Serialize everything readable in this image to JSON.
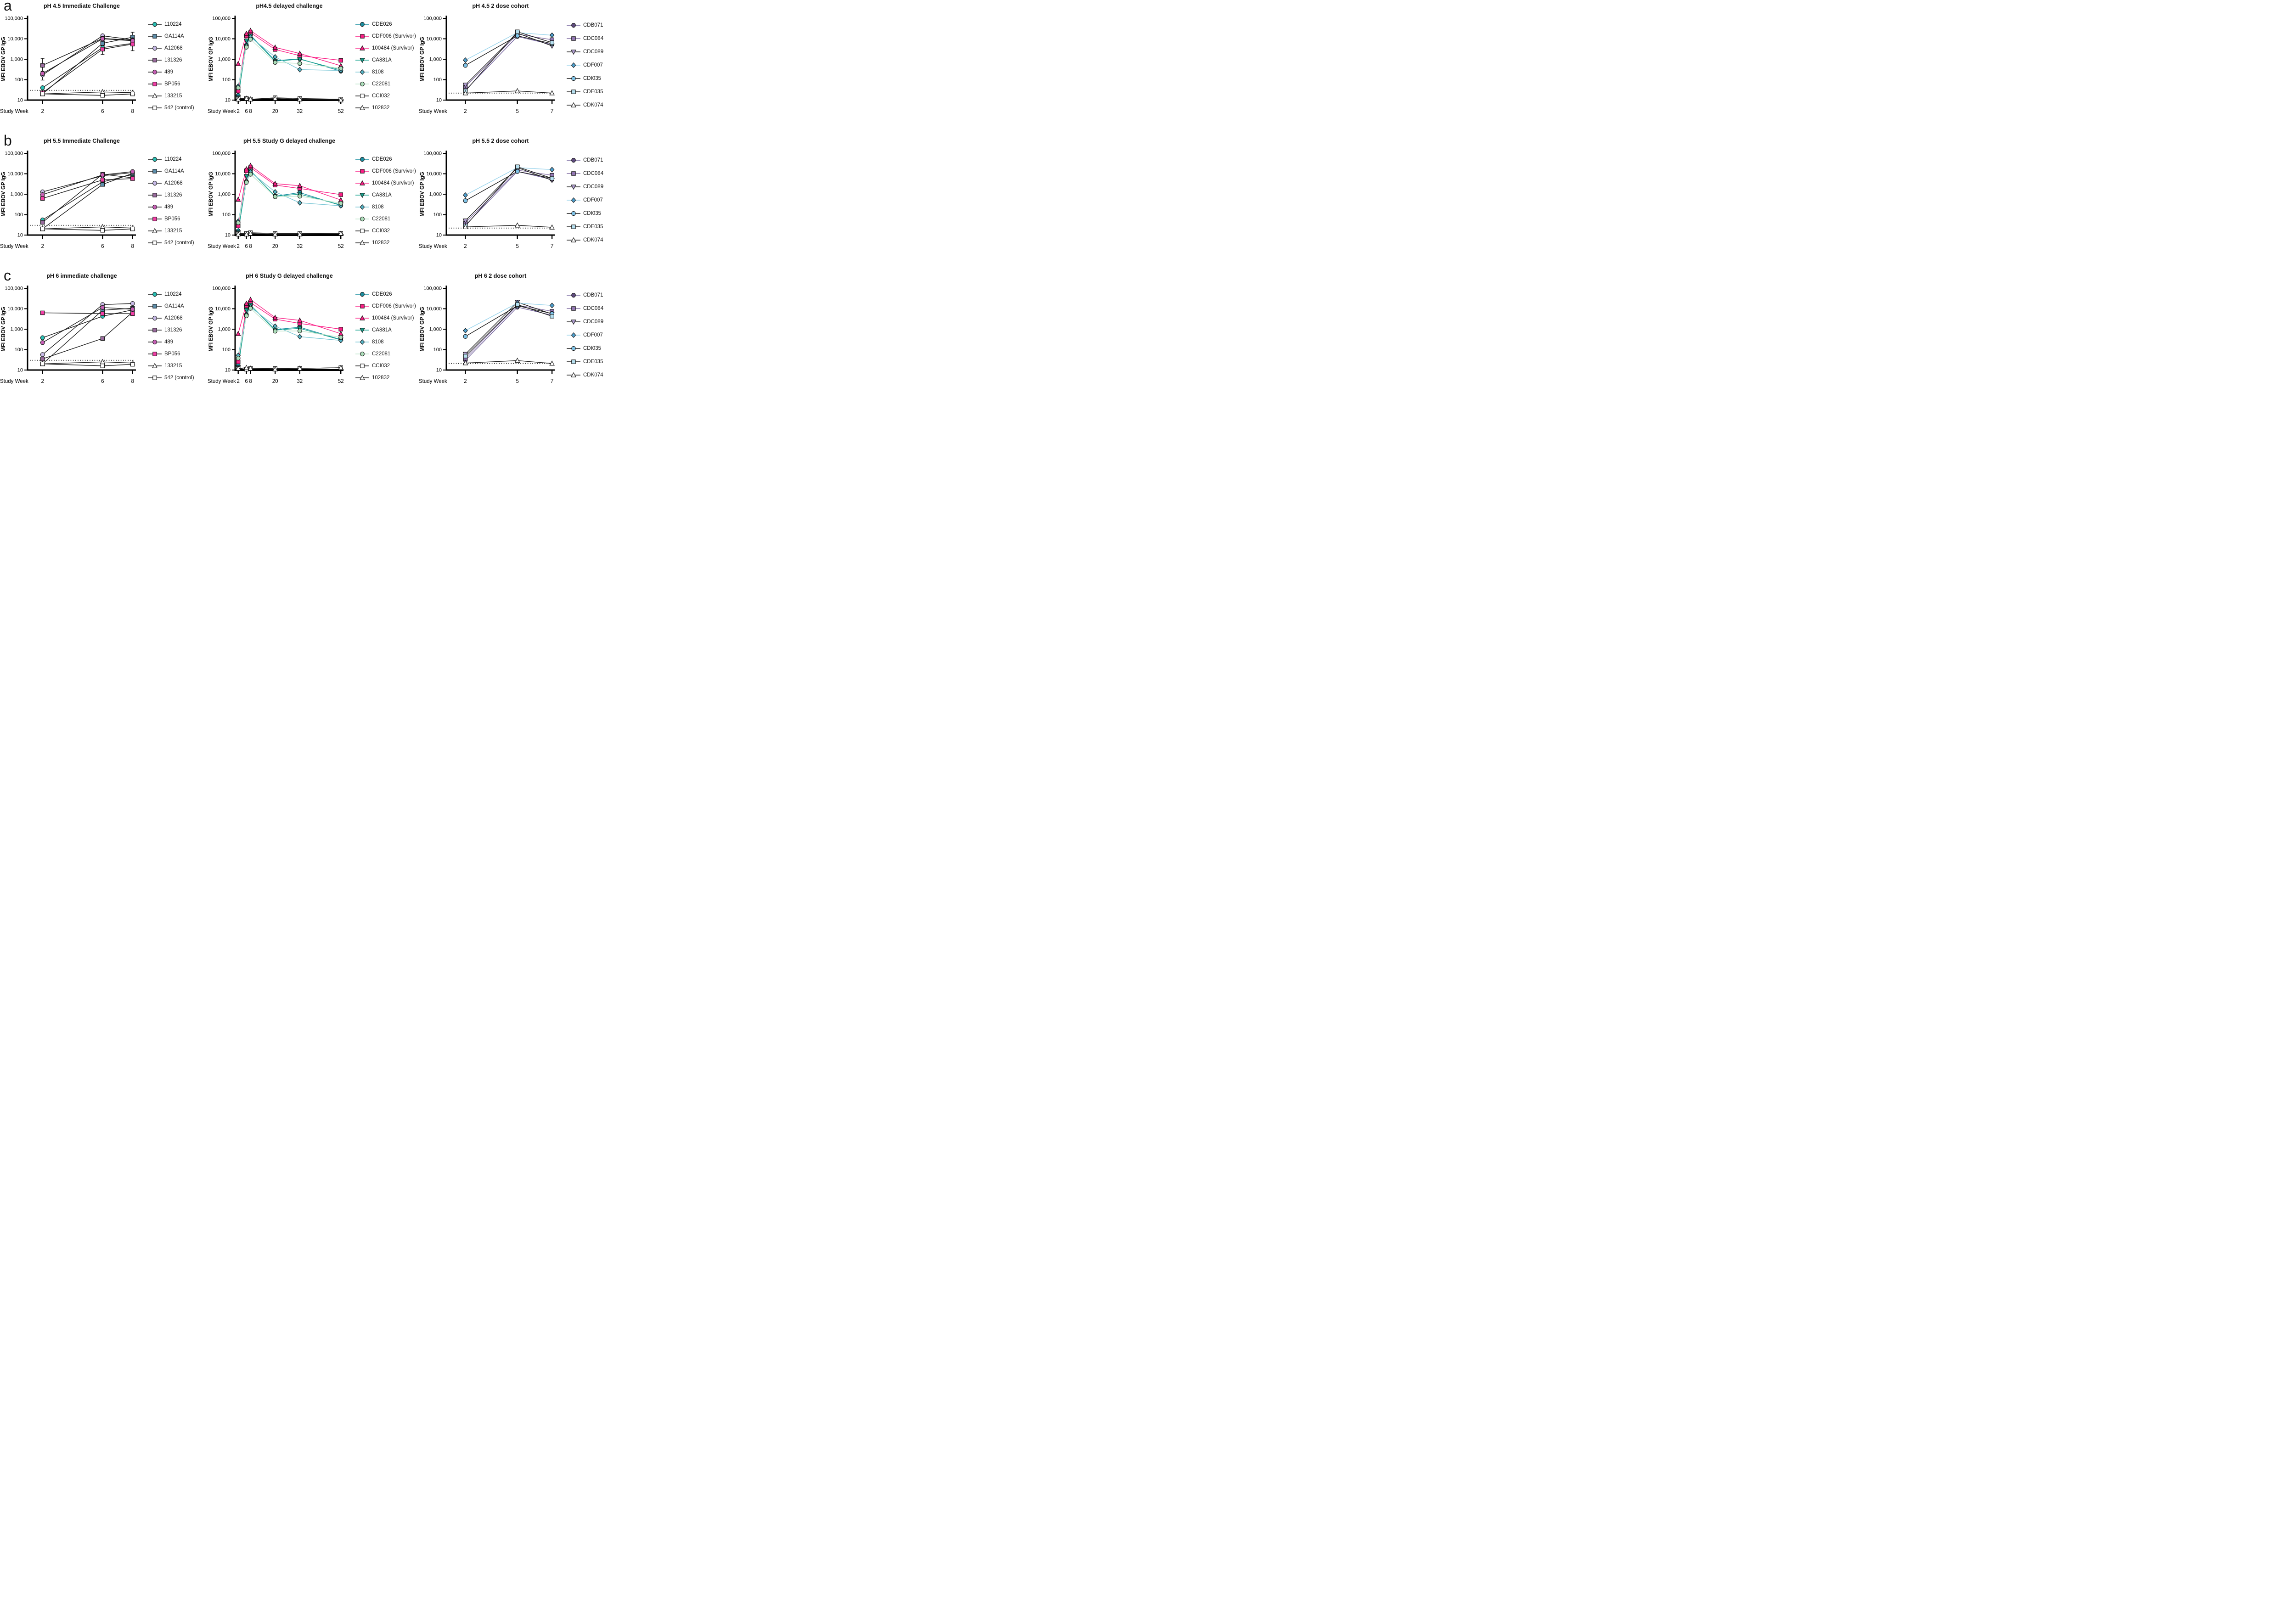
{
  "figure": {
    "panel_letters": [
      "a",
      "b",
      "c"
    ],
    "y_axis_label": "MFI EBOV GP IgG",
    "x_axis_label": "Study Week",
    "y_tick_labels": [
      "100,000",
      "10,000",
      "1,000",
      "100",
      "10"
    ],
    "background_color": "#ffffff",
    "axis_color": "#000000"
  },
  "legends": {
    "immediate": [
      {
        "label": "110224",
        "marker": "circle",
        "fill": "#2abfb3",
        "line": "#1a1a1a"
      },
      {
        "label": "GA114A",
        "marker": "square",
        "fill": "#5e8fac",
        "line": "#1a1a1a"
      },
      {
        "label": "A12068",
        "marker": "circle",
        "fill": "#c9bce9",
        "line": "#1a1a1a"
      },
      {
        "label": "131326",
        "marker": "square",
        "fill": "#9a6c9e",
        "line": "#1a1a1a"
      },
      {
        "label": "489",
        "marker": "circle",
        "fill": "#c760b6",
        "line": "#1a1a1a"
      },
      {
        "label": "BP056",
        "marker": "square",
        "fill": "#f33fa7",
        "line": "#1a1a1a"
      },
      {
        "label": "133215",
        "marker": "triangle-up",
        "fill": "#ffffff",
        "line": "#1a1a1a"
      },
      {
        "label": "542 (control)",
        "marker": "square",
        "fill": "#ffffff",
        "line": "#1a1a1a"
      }
    ],
    "delayed": [
      {
        "label": "CDE026",
        "marker": "circle",
        "fill": "#1e90a2",
        "line": "#1e90a2"
      },
      {
        "label": "CDF006 (Survivor)",
        "marker": "square",
        "fill": "#fb2087",
        "line": "#fb2087"
      },
      {
        "label": "100484 (Survivor)",
        "marker": "triangle-up",
        "fill": "#fb2087",
        "line": "#fb2087"
      },
      {
        "label": "CA881A",
        "marker": "triangle-down",
        "fill": "#17a28d",
        "line": "#17a28d"
      },
      {
        "label": "8108",
        "marker": "diamond",
        "fill": "#56b4c6",
        "line": "#7cc7d6"
      },
      {
        "label": "C22081",
        "marker": "circle",
        "fill": "#abddb9",
        "line": "#c2e6cd"
      },
      {
        "label": "CCI032",
        "marker": "square",
        "fill": "#ffffff",
        "line": "#1a1a1a"
      },
      {
        "label": "102832",
        "marker": "triangle-up",
        "fill": "#ffffff",
        "line": "#1a1a1a"
      }
    ],
    "dose2": [
      {
        "label": "CDB071",
        "marker": "circle",
        "fill": "#5f4b7e",
        "line": "#71619c"
      },
      {
        "label": "CDC084",
        "marker": "square",
        "fill": "#9478b5",
        "line": "#8672a6"
      },
      {
        "label": "CDC089",
        "marker": "triangle-down",
        "fill": "#b5a2d6",
        "line": "#1a1a1a"
      },
      {
        "label": "CDF007",
        "marker": "diamond",
        "fill": "#4fa0cf",
        "line": "#9ad4ec"
      },
      {
        "label": "CDI035",
        "marker": "circle",
        "fill": "#7fc4e9",
        "line": "#1a1a1a"
      },
      {
        "label": "CDE035",
        "marker": "square",
        "fill": "#b7e1f1",
        "line": "#1a1a1a"
      },
      {
        "label": "CDK074",
        "marker": "triangle-up",
        "fill": "#ffffff",
        "line": "#1a1a1a"
      }
    ]
  },
  "chart_data": [
    {
      "id": "a1",
      "type": "line",
      "x_type": "immediate",
      "legend_group": "immediate",
      "title": "pH 4.5 Immediate Challenge",
      "xlabel": "Study Week",
      "ylabel": "MFI EBOV GP IgG",
      "log_y": true,
      "ylim": [
        10,
        100000
      ],
      "weeks": [
        2,
        6,
        8
      ],
      "dotted_threshold": 30,
      "series": [
        {
          "name": "110224",
          "values": [
            40,
            3700,
            6000
          ]
        },
        {
          "name": "GA114A",
          "values": [
            20,
            6000,
            12000
          ],
          "errors": [
            null,
            null,
            [
              2600,
              21000
            ]
          ]
        },
        {
          "name": "A12068",
          "values": [
            170,
            14000,
            9000
          ],
          "errors": [
            [
              95,
              260
            ],
            null,
            [
              5000,
              15000
            ]
          ]
        },
        {
          "name": "131326",
          "values": [
            500,
            10500,
            8500
          ],
          "errors": [
            [
              250,
              1100
            ],
            null,
            null
          ]
        },
        {
          "name": "489",
          "values": [
            200,
            10000,
            8000
          ]
        },
        {
          "name": "BP056",
          "values": [
            23,
            3100,
            5500
          ],
          "errors": [
            null,
            [
              1700,
              4600
            ],
            null
          ]
        },
        {
          "name": "133215",
          "values": [
            20,
            25,
            23
          ]
        },
        {
          "name": "542 (control)",
          "values": [
            20,
            17,
            20
          ]
        }
      ]
    },
    {
      "id": "a2",
      "type": "line",
      "x_type": "delayed",
      "legend_group": "delayed",
      "title": "pH4.5 delayed challenge",
      "xlabel": "Study Week",
      "ylabel": "MFI EBOV GP IgG",
      "log_y": true,
      "ylim": [
        10,
        100000
      ],
      "weeks": [
        2,
        6,
        8,
        20,
        32,
        52
      ],
      "dotted_threshold": null,
      "series": [
        {
          "name": "CDE026",
          "values": [
            17,
            5000,
            15000,
            850,
            1050,
            260
          ]
        },
        {
          "name": "CDF006 (Survivor)",
          "values": [
            28,
            14000,
            20000,
            3000,
            1500,
            880
          ]
        },
        {
          "name": "100484 (Survivor)",
          "values": [
            600,
            18000,
            25000,
            3800,
            1900,
            480
          ]
        },
        {
          "name": "CA881A",
          "values": [
            13,
            8000,
            14000,
            800,
            1000,
            300
          ]
        },
        {
          "name": "8108",
          "values": [
            48,
            4500,
            12000,
            1300,
            310,
            280
          ]
        },
        {
          "name": "C22081",
          "values": [
            40,
            3900,
            9500,
            700,
            620,
            360
          ]
        },
        {
          "name": "CCI032",
          "values": [
            12,
            12,
            11,
            13,
            12,
            11
          ]
        },
        {
          "name": "102832",
          "values": [
            11,
            12,
            11,
            12,
            11,
            10
          ]
        }
      ]
    },
    {
      "id": "a3",
      "type": "line",
      "x_type": "dose2",
      "legend_group": "dose2",
      "title": "pH 4.5 2 dose cohort",
      "xlabel": "Study Week",
      "ylabel": "MFI EBOV GP IgG",
      "log_y": true,
      "ylim": [
        10,
        100000
      ],
      "weeks": [
        2,
        5,
        7
      ],
      "dotted_threshold": 22,
      "series": [
        {
          "name": "CDB071",
          "values": [
            30,
            13000,
            5200
          ]
        },
        {
          "name": "CDC084",
          "values": [
            45,
            17000,
            9000
          ]
        },
        {
          "name": "CDC089",
          "values": [
            55,
            19000,
            4500
          ]
        },
        {
          "name": "CDF007",
          "values": [
            900,
            20000,
            15000
          ]
        },
        {
          "name": "CDI035",
          "values": [
            500,
            14000,
            5800
          ]
        },
        {
          "name": "CDE035",
          "values": [
            28,
            22000,
            6500
          ]
        },
        {
          "name": "CDK074",
          "values": [
            22,
            28,
            22
          ]
        }
      ]
    },
    {
      "id": "b1",
      "type": "line",
      "x_type": "immediate",
      "legend_group": "immediate",
      "title": "pH 5.5 Immediate Challenge",
      "xlabel": "Study Week",
      "ylabel": "MFI EBOV GP IgG",
      "log_y": true,
      "ylim": [
        10,
        100000
      ],
      "weeks": [
        2,
        6,
        8
      ],
      "dotted_threshold": 30,
      "series": [
        {
          "name": "110224",
          "values": [
            55,
            4000,
            9200
          ]
        },
        {
          "name": "GA114A",
          "values": [
            20,
            3000,
            10500
          ]
        },
        {
          "name": "A12068",
          "values": [
            1300,
            8000,
            11500
          ]
        },
        {
          "name": "131326",
          "values": [
            42,
            9500,
            6300
          ]
        },
        {
          "name": "489",
          "values": [
            950,
            8800,
            12800
          ]
        },
        {
          "name": "BP056",
          "values": [
            620,
            5000,
            5800
          ]
        },
        {
          "name": "133215",
          "values": [
            20,
            25,
            22
          ]
        },
        {
          "name": "542 (control)",
          "values": [
            20,
            17,
            20
          ]
        }
      ]
    },
    {
      "id": "b2",
      "type": "line",
      "x_type": "delayed",
      "legend_group": "delayed",
      "title": "pH 5.5 Study G delayed challenge",
      "xlabel": "Study Week",
      "ylabel": "MFI EBOV GP IgG",
      "log_y": true,
      "ylim": [
        10,
        100000
      ],
      "weeks": [
        2,
        6,
        8,
        20,
        32,
        52
      ],
      "dotted_threshold": null,
      "series": [
        {
          "name": "CDE026",
          "values": [
            16,
            4200,
            14000,
            800,
            1200,
            280
          ]
        },
        {
          "name": "CDF006 (Survivor)",
          "values": [
            28,
            14000,
            20000,
            2800,
            1900,
            950
          ]
        },
        {
          "name": "100484 (Survivor)",
          "values": [
            550,
            17000,
            25000,
            3300,
            2600,
            520
          ]
        },
        {
          "name": "CA881A",
          "values": [
            13,
            7500,
            14000,
            800,
            1000,
            300
          ]
        },
        {
          "name": "8108",
          "values": [
            48,
            4200,
            12000,
            1300,
            380,
            270
          ]
        },
        {
          "name": "C22081",
          "values": [
            40,
            3800,
            9500,
            750,
            800,
            360
          ]
        },
        {
          "name": "CCI032",
          "values": [
            12,
            12,
            13,
            12,
            12,
            12
          ]
        },
        {
          "name": "102832",
          "values": [
            11,
            11,
            12,
            11,
            11,
            12
          ]
        }
      ]
    },
    {
      "id": "b3",
      "type": "line",
      "x_type": "dose2",
      "legend_group": "dose2",
      "title": "pH 5.5 2 dose cohort",
      "xlabel": "Study Week",
      "ylabel": "MFI EBOV GP IgG",
      "log_y": true,
      "ylim": [
        10,
        100000
      ],
      "weeks": [
        2,
        5,
        7
      ],
      "dotted_threshold": 22,
      "series": [
        {
          "name": "CDB071",
          "values": [
            30,
            13000,
            5200
          ]
        },
        {
          "name": "CDC084",
          "values": [
            40,
            15000,
            8500
          ]
        },
        {
          "name": "CDC089",
          "values": [
            50,
            20000,
            4800
          ]
        },
        {
          "name": "CDF007",
          "values": [
            900,
            20000,
            16000
          ]
        },
        {
          "name": "CDI035",
          "values": [
            480,
            13000,
            6000
          ]
        },
        {
          "name": "CDE035",
          "values": [
            28,
            22000,
            6000
          ]
        },
        {
          "name": "CDK074",
          "values": [
            25,
            30,
            24
          ]
        }
      ]
    },
    {
      "id": "c1",
      "type": "line",
      "x_type": "immediate",
      "legend_group": "immediate",
      "title": "pH 6 immediate challenge",
      "xlabel": "Study Week",
      "ylabel": "MFI EBOV GP IgG",
      "log_y": true,
      "ylim": [
        10,
        100000
      ],
      "weeks": [
        2,
        6,
        8
      ],
      "dotted_threshold": 30,
      "series": [
        {
          "name": "110224",
          "values": [
            380,
            4300,
            8800
          ]
        },
        {
          "name": "GA114A",
          "values": [
            20,
            8500,
            10500
          ]
        },
        {
          "name": "A12068",
          "values": [
            57,
            16000,
            18000
          ]
        },
        {
          "name": "131326",
          "values": [
            35,
            350,
            6800
          ]
        },
        {
          "name": "489",
          "values": [
            220,
            11500,
            9500
          ]
        },
        {
          "name": "BP056",
          "values": [
            6300,
            5800,
            5700
          ]
        },
        {
          "name": "133215",
          "values": [
            20,
            25,
            22
          ]
        },
        {
          "name": "542 (control)",
          "values": [
            20,
            16,
            19
          ]
        }
      ]
    },
    {
      "id": "c2",
      "type": "line",
      "x_type": "delayed",
      "legend_group": "delayed",
      "title": "pH 6 Study G delayed challenge",
      "xlabel": "Study Week",
      "ylabel": "MFI EBOV GP IgG",
      "log_y": true,
      "ylim": [
        10,
        100000
      ],
      "weeks": [
        2,
        6,
        8,
        20,
        32,
        52
      ],
      "dotted_threshold": null,
      "series": [
        {
          "name": "CDE026",
          "values": [
            17,
            5200,
            15000,
            950,
            1250,
            310
          ]
        },
        {
          "name": "CDF006 (Survivor)",
          "values": [
            25,
            14000,
            20000,
            3100,
            1900,
            1000
          ]
        },
        {
          "name": "100484 (Survivor)",
          "values": [
            600,
            18000,
            28000,
            3700,
            2700,
            600
          ]
        },
        {
          "name": "CA881A",
          "values": [
            13,
            8500,
            15000,
            900,
            1100,
            300
          ]
        },
        {
          "name": "8108",
          "values": [
            52,
            5000,
            12000,
            1400,
            430,
            280
          ]
        },
        {
          "name": "C22081",
          "values": [
            38,
            4500,
            10500,
            800,
            820,
            400
          ]
        },
        {
          "name": "CCI032",
          "values": [
            12,
            11,
            12,
            12,
            12,
            13
          ]
        },
        {
          "name": "102832",
          "values": [
            12,
            13,
            12,
            11,
            12,
            13
          ]
        }
      ]
    },
    {
      "id": "c3",
      "type": "line",
      "x_type": "dose2",
      "legend_group": "dose2",
      "title": "pH 6 2 dose cohort",
      "xlabel": "Study Week",
      "ylabel": "MFI EBOV GP IgG",
      "log_y": true,
      "ylim": [
        10,
        100000
      ],
      "weeks": [
        2,
        5,
        7
      ],
      "dotted_threshold": 21,
      "series": [
        {
          "name": "CDB071",
          "values": [
            30,
            12000,
            4800
          ]
        },
        {
          "name": "CDC084",
          "values": [
            38,
            15000,
            7500
          ]
        },
        {
          "name": "CDC089",
          "values": [
            60,
            21000,
            5500
          ]
        },
        {
          "name": "CDF007",
          "values": [
            850,
            19000,
            14500
          ]
        },
        {
          "name": "CDI035",
          "values": [
            440,
            14000,
            5800
          ]
        },
        {
          "name": "CDE035",
          "values": [
            48,
            16000,
            4300
          ]
        },
        {
          "name": "CDK074",
          "values": [
            22,
            29,
            21
          ]
        }
      ]
    }
  ]
}
